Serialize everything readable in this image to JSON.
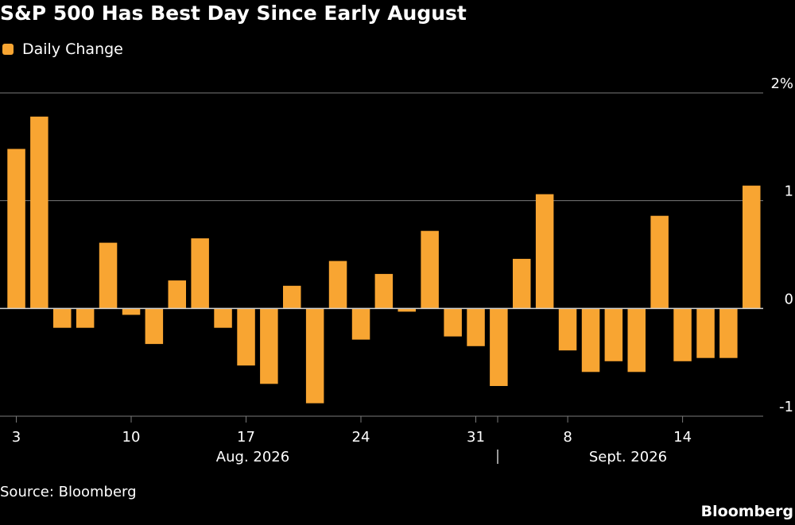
{
  "title": "S&P 500 Has Best Day Since Early August",
  "legend": {
    "label": "Daily Change",
    "color": "#f8a532"
  },
  "source": "Source: Bloomberg",
  "brand": "Bloomberg",
  "colors": {
    "background": "#000000",
    "grid": "#7a7a7a",
    "text": "#ffffff",
    "bar": "#f8a532"
  },
  "chart_data": {
    "type": "bar",
    "title": "S&P 500 Has Best Day Since Early August",
    "unit": "%",
    "ylim": [
      -1,
      2
    ],
    "y_ticks": [
      2,
      1,
      0,
      -1
    ],
    "y_tick_labels": [
      "2%",
      "1",
      "0",
      "-1"
    ],
    "grid": true,
    "y_axis_side": "right",
    "legend_placement": "top-left",
    "x_tick_labels": [
      "3",
      "10",
      "17",
      "24",
      "31",
      "8",
      "14"
    ],
    "x_month_labels": [
      "Aug. 2026",
      "Sept. 2026"
    ],
    "series": [
      {
        "name": "Daily Change",
        "categories": [
          "Aug 3",
          "Aug 4",
          "Aug 5",
          "Aug 6",
          "Aug 7",
          "Aug 10",
          "Aug 11",
          "Aug 12",
          "Aug 13",
          "Aug 14",
          "Aug 17",
          "Aug 18",
          "Aug 19",
          "Aug 20",
          "Aug 21",
          "Aug 24",
          "Aug 25",
          "Aug 26",
          "Aug 27",
          "Aug 28",
          "Aug 31",
          "Sep 1",
          "Sep 2",
          "Sep 3",
          "Sep 4",
          "Sep 8",
          "Sep 9",
          "Sep 10",
          "Sep 11",
          "Sep 14",
          "Sep 15",
          "Sep 16",
          "Sep 17",
          "Sep 18"
        ],
        "values": [
          1.48,
          1.78,
          -0.18,
          -0.18,
          0.61,
          -0.06,
          -0.33,
          0.26,
          0.65,
          -0.18,
          -0.53,
          -0.7,
          0.21,
          -0.88,
          0.44,
          -0.29,
          0.32,
          -0.03,
          0.72,
          -0.26,
          -0.35,
          -0.72,
          0.46,
          1.06,
          -0.39,
          -0.59,
          -0.49,
          -0.59,
          0.86,
          -0.49,
          -0.46,
          -0.46,
          1.14,
          0.0
        ],
        "visible_count": 33
      }
    ]
  }
}
